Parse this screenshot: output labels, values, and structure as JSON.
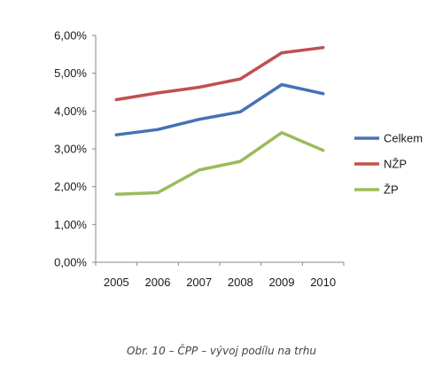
{
  "caption": "Obr. 10 – ČPP – vývoj podílu na trhu",
  "chart_data": {
    "type": "line",
    "x": [
      "2005",
      "2006",
      "2007",
      "2008",
      "2009",
      "2010"
    ],
    "y_ticks": [
      "0,00%",
      "1,00%",
      "2,00%",
      "3,00%",
      "4,00%",
      "5,00%",
      "6,00%"
    ],
    "ylim": [
      0,
      6
    ],
    "grid": false,
    "legend_position": "right",
    "series": [
      {
        "name": "Celkem",
        "color": "#4473b5",
        "values": [
          3.37,
          3.51,
          3.78,
          3.98,
          4.7,
          4.46
        ]
      },
      {
        "name": "NŽP",
        "color": "#c0504d",
        "values": [
          4.3,
          4.48,
          4.63,
          4.85,
          5.54,
          5.68
        ]
      },
      {
        "name": "ŽP",
        "color": "#9bbb59",
        "values": [
          1.8,
          1.84,
          2.44,
          2.67,
          3.43,
          2.96
        ]
      }
    ]
  }
}
